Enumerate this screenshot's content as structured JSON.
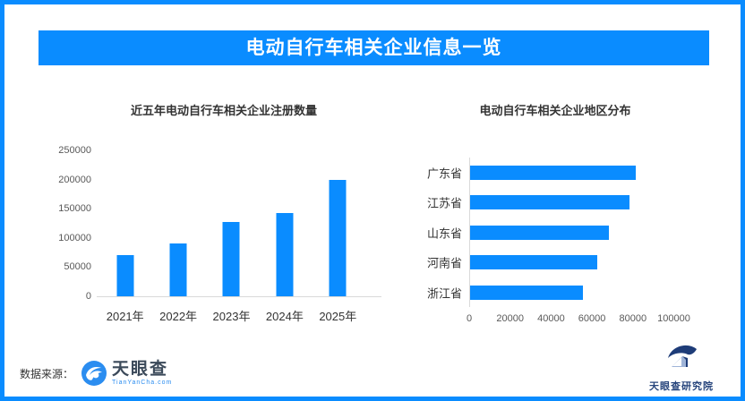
{
  "page": {
    "border_color": "#0a8cff",
    "background_color": "#ffffff"
  },
  "header": {
    "title": "电动自行车相关企业信息一览",
    "bg_color": "#0a8cff",
    "text_color": "#ffffff"
  },
  "chart_data": [
    {
      "type": "bar",
      "orientation": "vertical",
      "title": "近五年电动自行车相关企业注册数量",
      "categories": [
        "2021年",
        "2022年",
        "2023年",
        "2024年",
        "2025年"
      ],
      "values": [
        70000,
        90000,
        128000,
        143000,
        199000
      ],
      "ylim": [
        0,
        250000
      ],
      "yticks": [
        0,
        50000,
        100000,
        150000,
        200000,
        250000
      ],
      "bar_color": "#0a8cff",
      "axis_color": "#d9d9d9",
      "grid": false,
      "legend": "none"
    },
    {
      "type": "bar",
      "orientation": "horizontal",
      "title": "电动自行车相关企业地区分布",
      "categories": [
        "广东省",
        "江苏省",
        "山东省",
        "河南省",
        "浙江省"
      ],
      "values": [
        81000,
        78000,
        68000,
        62000,
        55000
      ],
      "xlim": [
        0,
        100000
      ],
      "xticks": [
        0,
        20000,
        40000,
        60000,
        80000,
        100000
      ],
      "bar_color": "#0a8cff",
      "axis_color": "#d9d9d9",
      "grid": false,
      "legend": "none"
    }
  ],
  "footer": {
    "source_label": "数据来源：",
    "tianyancha": {
      "name": "天眼查",
      "domain": "TianYanCha.com",
      "icon_color": "#2b8df0"
    },
    "research_institute": {
      "name": "天眼查研究院",
      "icon_color": "#1e3c78"
    }
  }
}
